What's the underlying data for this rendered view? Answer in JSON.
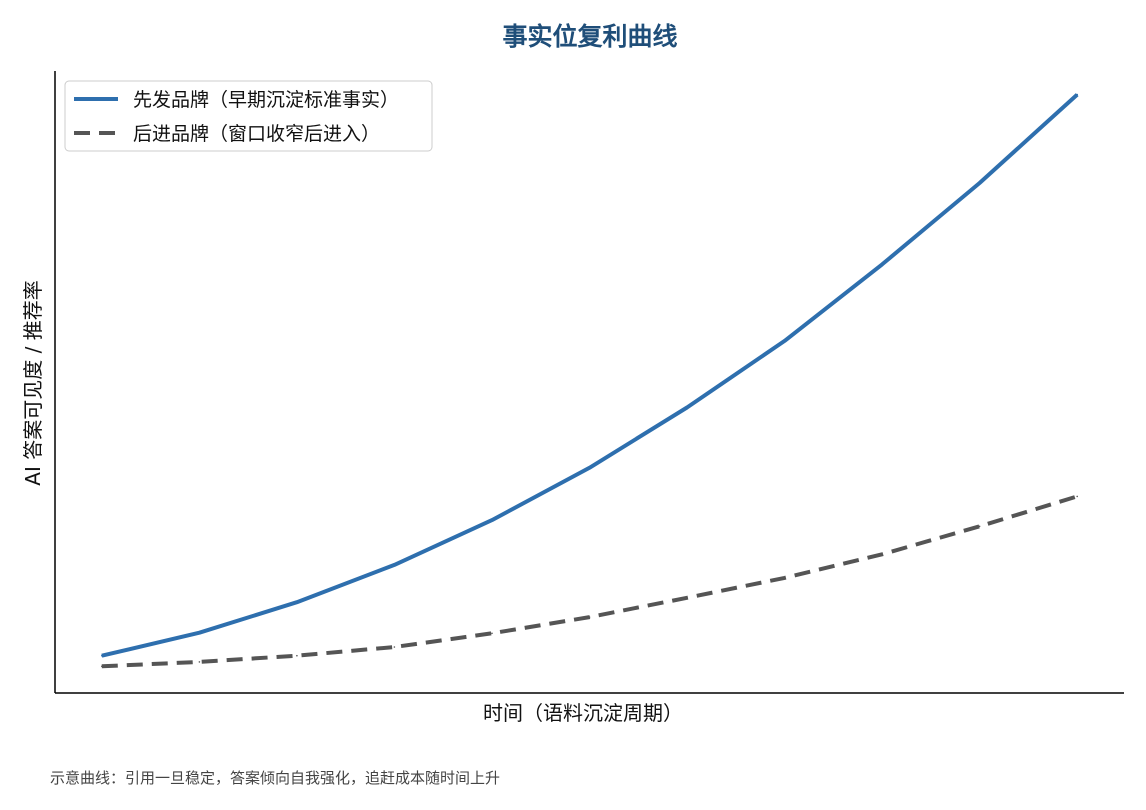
{
  "chart_data": {
    "type": "line",
    "title": "事实位复利曲线",
    "xlabel": "时间（语料沉淀周期）",
    "ylabel": "AI 答案可见度 / 推荐率",
    "caption": "示意曲线：引用一旦稳定，答案倾向自我强化，追赶成本随时间上升",
    "x": [
      0,
      1,
      2,
      3,
      4,
      5,
      6,
      7,
      8,
      9,
      10
    ],
    "xlim": [
      -0.48,
      10.48
    ],
    "ylim": [
      0,
      100
    ],
    "grid": false,
    "x_ticks": false,
    "y_ticks": false,
    "legend_position": "top-left",
    "series": [
      {
        "name": "先发品牌（早期沉淀标准事实）",
        "color": "#2e6fae",
        "line_style": "solid",
        "values": [
          6,
          9.7,
          14.6,
          20.6,
          27.8,
          36.2,
          45.9,
          56.6,
          68.9,
          82,
          96.2
        ]
      },
      {
        "name": "后进品牌（窗口收窄后进入）",
        "color": "#555555",
        "line_style": "dashed",
        "values": [
          4.3,
          5,
          6,
          7.4,
          9.6,
          12.2,
          15.3,
          18.5,
          22.3,
          26.8,
          31.6
        ]
      }
    ]
  }
}
